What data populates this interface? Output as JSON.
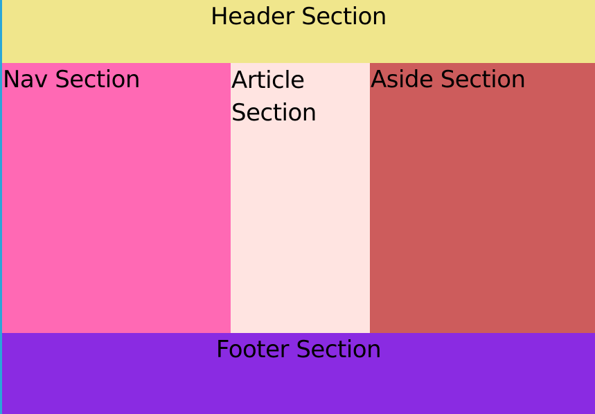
{
  "header": {
    "title": "Header Section",
    "color": "#f0e68c"
  },
  "nav": {
    "title": "Nav Section",
    "color": "#ff69b4"
  },
  "article": {
    "title": "Article Section",
    "color": "#ffe4e1"
  },
  "aside": {
    "title": "Aside Section",
    "color": "#cd5c5c"
  },
  "footer": {
    "title": "Footer Section",
    "color": "#8a2be2"
  },
  "edge": {
    "color": "#2aa7d8"
  }
}
